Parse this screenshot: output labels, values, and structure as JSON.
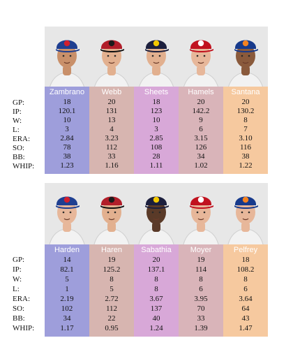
{
  "stat_labels": [
    "GP:",
    "IP:",
    "W:",
    "L:",
    "ERA:",
    "SO:",
    "BB:",
    "WHIP:"
  ],
  "colors": {
    "col1": "#9e9edb",
    "col2": "#d7b5b0",
    "col3": "#d8a8d8",
    "col4": "#d9b4b9",
    "col5": "#f6c99f"
  },
  "groups": [
    {
      "pitchers": [
        {
          "name": "Zambrano",
          "team_icon": "cubs-cap-icon",
          "stats": [
            "18",
            "120.1",
            "10",
            "3",
            "2.84",
            "78",
            "38",
            "1.23"
          ]
        },
        {
          "name": "Webb",
          "team_icon": "dbacks-cap-icon",
          "stats": [
            "20",
            "131",
            "13",
            "4",
            "3.23",
            "112",
            "33",
            "1.16"
          ]
        },
        {
          "name": "Sheets",
          "team_icon": "brewers-cap-icon",
          "stats": [
            "18",
            "123",
            "10",
            "3",
            "2.85",
            "108",
            "28",
            "1.11"
          ]
        },
        {
          "name": "Hamels",
          "team_icon": "phillies-cap-icon",
          "stats": [
            "20",
            "142.2",
            "9",
            "6",
            "3.15",
            "126",
            "34",
            "1.02"
          ]
        },
        {
          "name": "Santana",
          "team_icon": "mets-cap-icon",
          "stats": [
            "20",
            "130.2",
            "8",
            "7",
            "3.10",
            "116",
            "38",
            "1.22"
          ]
        }
      ]
    },
    {
      "pitchers": [
        {
          "name": "Harden",
          "team_icon": "cubs-cap-icon",
          "stats": [
            "14",
            "82.1",
            "5",
            "1",
            "2.19",
            "102",
            "34",
            "1.17"
          ]
        },
        {
          "name": "Haren",
          "team_icon": "dbacks-cap-icon",
          "stats": [
            "19",
            "125.2",
            "8",
            "5",
            "2.72",
            "112",
            "22",
            "0.95"
          ]
        },
        {
          "name": "Sabathia",
          "team_icon": "brewers-cap-icon",
          "stats": [
            "20",
            "137.1",
            "8",
            "8",
            "3.67",
            "137",
            "40",
            "1.24"
          ]
        },
        {
          "name": "Moyer",
          "team_icon": "phillies-cap-icon",
          "stats": [
            "19",
            "114",
            "8",
            "6",
            "3.95",
            "70",
            "33",
            "1.39"
          ]
        },
        {
          "name": "Pelfrey",
          "team_icon": "mets-cap-icon",
          "stats": [
            "18",
            "108.2",
            "8",
            "6",
            "3.64",
            "64",
            "43",
            "1.47"
          ]
        }
      ]
    }
  ]
}
